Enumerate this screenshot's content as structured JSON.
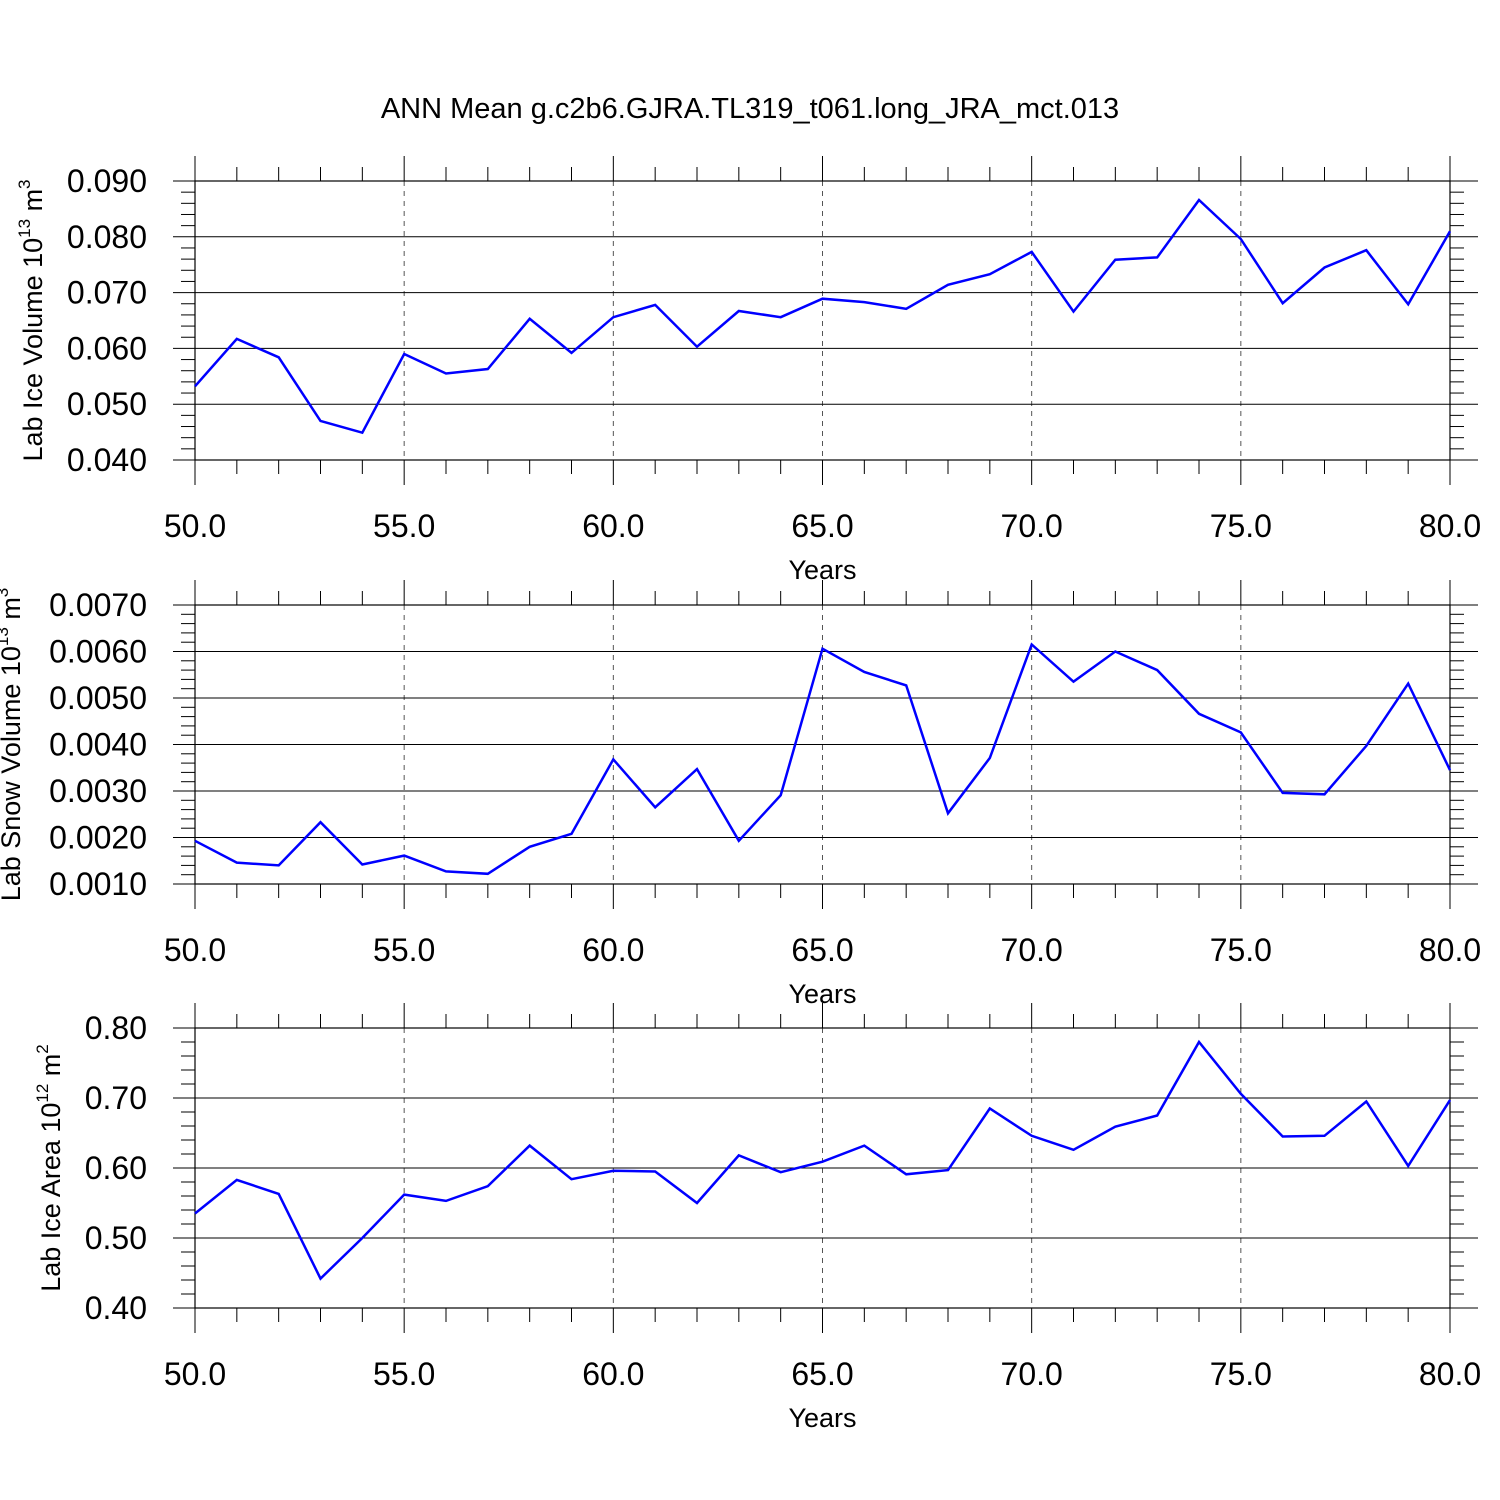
{
  "title": "ANN Mean g.c2b6.GJRA.TL319_t061.long_JRA_mct.013",
  "colors": {
    "line": "#0000ff",
    "axis": "#000000",
    "grid": "#555555"
  },
  "chart_data": [
    {
      "type": "line",
      "xlabel": "Years",
      "ylabel": {
        "main": "Lab Ice Volume 10",
        "sup": "13",
        "unit": " m",
        "unit_sup": "3"
      },
      "xlim": [
        50,
        80
      ],
      "ylim": [
        0.04,
        0.09
      ],
      "xticks": [
        "50.0",
        "55.0",
        "60.0",
        "65.0",
        "70.0",
        "75.0",
        "80.0"
      ],
      "yticks": [
        "0.040",
        "0.050",
        "0.060",
        "0.070",
        "0.080",
        "0.090"
      ],
      "grid": "vertical dashed at major x ticks",
      "series": [
        {
          "x": [
            50,
            51,
            52,
            53,
            54,
            55,
            56,
            57,
            58,
            59,
            60,
            61,
            62,
            63,
            64,
            65,
            66,
            67,
            68,
            69,
            70,
            71,
            72,
            73,
            74,
            75,
            76,
            77,
            78,
            79,
            80
          ],
          "values": [
            0.0532,
            0.0617,
            0.0584,
            0.047,
            0.0449,
            0.059,
            0.0555,
            0.0563,
            0.0653,
            0.0592,
            0.0656,
            0.0678,
            0.0603,
            0.0667,
            0.0656,
            0.0689,
            0.0683,
            0.0671,
            0.0714,
            0.0733,
            0.0773,
            0.0666,
            0.0759,
            0.0763,
            0.0866,
            0.0796,
            0.0681,
            0.0745,
            0.0776,
            0.0679,
            0.081
          ]
        }
      ]
    },
    {
      "type": "line",
      "xlabel": "Years",
      "ylabel": {
        "main": "Lab Snow Volume 10",
        "sup": "13",
        "unit": " m",
        "unit_sup": "3"
      },
      "xlim": [
        50,
        80
      ],
      "ylim": [
        0.001,
        0.007
      ],
      "xticks": [
        "50.0",
        "55.0",
        "60.0",
        "65.0",
        "70.0",
        "75.0",
        "80.0"
      ],
      "yticks": [
        "0.0010",
        "0.0020",
        "0.0030",
        "0.0040",
        "0.0050",
        "0.0060",
        "0.0070"
      ],
      "grid": "vertical dashed at major x ticks",
      "series": [
        {
          "x": [
            50,
            51,
            52,
            53,
            54,
            55,
            56,
            57,
            58,
            59,
            60,
            61,
            62,
            63,
            64,
            65,
            66,
            67,
            68,
            69,
            70,
            71,
            72,
            73,
            74,
            75,
            76,
            77,
            78,
            79,
            80
          ],
          "values": [
            0.00193,
            0.00146,
            0.0014,
            0.00233,
            0.00142,
            0.00161,
            0.00127,
            0.00122,
            0.0018,
            0.00208,
            0.00368,
            0.00265,
            0.00347,
            0.00193,
            0.00291,
            0.00606,
            0.00556,
            0.00527,
            0.00252,
            0.00371,
            0.00615,
            0.00535,
            0.006,
            0.0056,
            0.00466,
            0.00426,
            0.00296,
            0.00293,
            0.00397,
            0.00531,
            0.00345
          ]
        }
      ]
    },
    {
      "type": "line",
      "xlabel": "Years",
      "ylabel": {
        "main": "Lab Ice Area 10",
        "sup": "12",
        "unit": " m",
        "unit_sup": "2"
      },
      "xlim": [
        50,
        80
      ],
      "ylim": [
        0.4,
        0.8
      ],
      "xticks": [
        "50.0",
        "55.0",
        "60.0",
        "65.0",
        "70.0",
        "75.0",
        "80.0"
      ],
      "yticks": [
        "0.40",
        "0.50",
        "0.60",
        "0.70",
        "0.80"
      ],
      "grid": "vertical dashed at major x ticks",
      "series": [
        {
          "x": [
            50,
            51,
            52,
            53,
            54,
            55,
            56,
            57,
            58,
            59,
            60,
            61,
            62,
            63,
            64,
            65,
            66,
            67,
            68,
            69,
            70,
            71,
            72,
            73,
            74,
            75,
            76,
            77,
            78,
            79,
            80
          ],
          "values": [
            0.535,
            0.583,
            0.563,
            0.442,
            0.5,
            0.562,
            0.553,
            0.574,
            0.632,
            0.584,
            0.596,
            0.595,
            0.55,
            0.618,
            0.594,
            0.609,
            0.632,
            0.591,
            0.597,
            0.685,
            0.646,
            0.626,
            0.659,
            0.675,
            0.78,
            0.706,
            0.645,
            0.646,
            0.695,
            0.603,
            0.697
          ]
        }
      ]
    }
  ]
}
